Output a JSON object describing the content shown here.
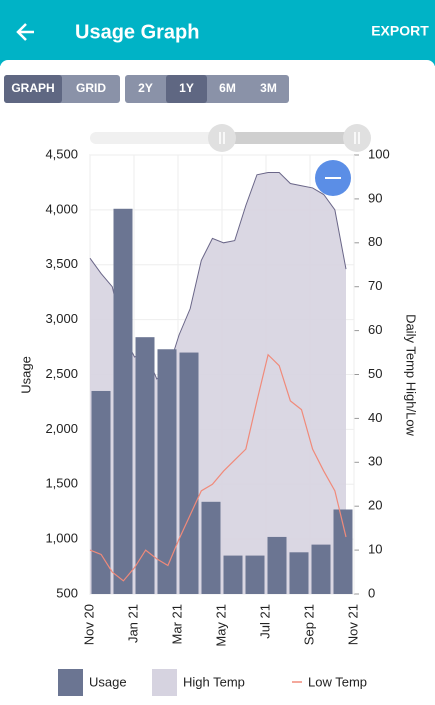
{
  "header": {
    "title": "Usage Graph",
    "action": "EXPORT"
  },
  "toolbar": {
    "view_buttons": [
      "GRAPH",
      "GRID"
    ],
    "selected_view": 0,
    "range_buttons": [
      "2Y",
      "1Y",
      "6M",
      "3M"
    ],
    "selected_range": 1
  },
  "chart_data": {
    "type": "bar",
    "x_labels": [
      "Nov 20",
      "Jan 21",
      "Mar 21",
      "May 21",
      "Jul 21",
      "Sep 21",
      "Nov 21"
    ],
    "ylabel": "Usage",
    "y2label": "Daily Temp High/Low",
    "ylim": [
      500,
      4500
    ],
    "yticks": [
      500,
      {
        "value": 1000,
        "label": "1,000"
      },
      {
        "value": 1500,
        "label": "1,500"
      },
      {
        "value": 2000,
        "label": "2,000"
      },
      {
        "value": 2500,
        "label": "2,500"
      },
      {
        "value": 3000,
        "label": "3,000"
      },
      {
        "value": 3500,
        "label": "3,500"
      },
      {
        "value": 4000,
        "label": "4,000"
      },
      {
        "value": 4500,
        "label": "4,500"
      }
    ],
    "y2lim": [
      0,
      100
    ],
    "y2ticks": [
      0,
      10,
      20,
      30,
      40,
      50,
      60,
      70,
      80,
      90,
      100
    ],
    "grid": true,
    "series": [
      {
        "name": "Usage",
        "type": "bar",
        "color": "#6b7592",
        "values": [
          2350,
          4010,
          2840,
          2730,
          2700,
          1340,
          850,
          850,
          1020,
          880,
          950,
          1270
        ]
      },
      {
        "name": "High Temp",
        "type": "area",
        "axis": "y2",
        "color": "#d6d3e0",
        "line_color": "#6a6688",
        "values": [
          76.5,
          73,
          70,
          59,
          54,
          55,
          49,
          51,
          59,
          65,
          76,
          81,
          80,
          80.5,
          88.5,
          95.5,
          96,
          96,
          93.5,
          93,
          92.5,
          91,
          87.5,
          74
        ]
      },
      {
        "name": "Low Temp",
        "type": "line",
        "axis": "y2",
        "color": "#f08a7a",
        "values": [
          10,
          9,
          5,
          3,
          6,
          10,
          8,
          6.5,
          12.5,
          18,
          23.5,
          25,
          28,
          30.5,
          33,
          44,
          54.5,
          52,
          44,
          42,
          33,
          28,
          23.5,
          13
        ]
      }
    ]
  }
}
